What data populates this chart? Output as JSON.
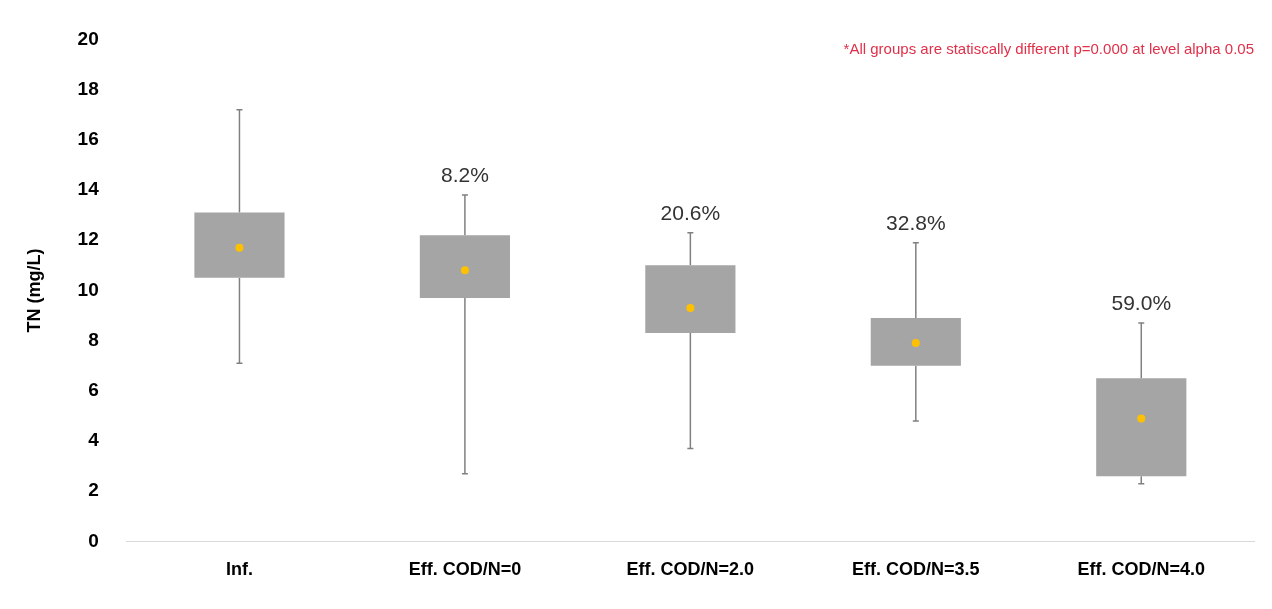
{
  "chart_data": {
    "type": "box",
    "ylabel": "TN (mg/L)",
    "categories": [
      "Inf.",
      "Eff. COD/N=0",
      "Eff. COD/N=2.0",
      "Eff. COD/N=3.5",
      "Eff. COD/N=4.0"
    ],
    "series": [
      {
        "color": "#a5a5a5",
        "boxes": [
          {
            "low": 7.1,
            "q1": 10.5,
            "q3": 13.1,
            "high": 17.2,
            "mean": 11.7
          },
          {
            "low": 2.7,
            "q1": 9.7,
            "q3": 12.2,
            "high": 13.8,
            "mean": 10.8
          },
          {
            "low": 3.7,
            "q1": 8.3,
            "q3": 11.0,
            "high": 12.3,
            "mean": 9.3
          },
          {
            "low": 4.8,
            "q1": 7.0,
            "q3": 8.9,
            "high": 11.9,
            "mean": 7.9
          },
          {
            "low": 2.3,
            "q1": 2.6,
            "q3": 6.5,
            "high": 8.7,
            "mean": 4.9
          }
        ]
      }
    ],
    "ylim": [
      0,
      20
    ],
    "yticks": [
      0,
      2,
      4,
      6,
      8,
      10,
      12,
      14,
      16,
      18,
      20
    ],
    "grid": false,
    "legend": false,
    "annotations": [
      {
        "text": "8.2%",
        "x": "Eff. COD/N=0",
        "y": 13.8
      },
      {
        "text": "20.6%",
        "x": "Eff. COD/N=2.0",
        "y": 12.3
      },
      {
        "text": "32.8%",
        "x": "Eff. COD/N=3.5",
        "y": 11.9
      },
      {
        "text": "59.0%",
        "x": "Eff. COD/N=4.0",
        "y": 8.7
      },
      "*All groups are statiscally different p=0.000 at level alpha 0.05"
    ]
  }
}
